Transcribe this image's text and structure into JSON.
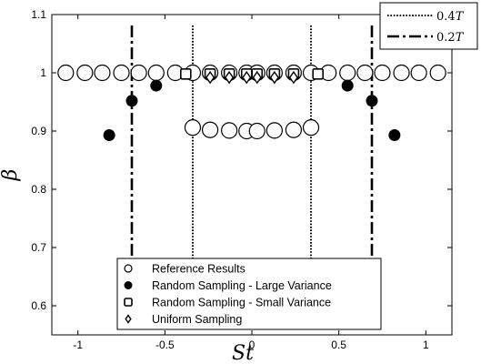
{
  "chart_data": {
    "type": "scatter",
    "xlabel": "St",
    "ylabel": "β",
    "xlim": [
      -1.15,
      1.15
    ],
    "ylim": [
      0.55,
      1.1
    ],
    "xticks": [
      "-1",
      "-0.5",
      "0",
      "0.5",
      "1"
    ],
    "xtick_values": [
      -1,
      -0.5,
      0,
      0.5,
      1
    ],
    "yticks": [
      "0.6",
      "0.7",
      "0.8",
      "0.9",
      "1",
      "1.1"
    ],
    "ytick_values": [
      0.6,
      0.7,
      0.8,
      0.9,
      1.0,
      1.1
    ],
    "series": [
      {
        "name": "Reference Results",
        "marker": "open-circle",
        "points": [
          [
            -1.07,
            1.0
          ],
          [
            -0.96,
            1.0
          ],
          [
            -0.86,
            1.0
          ],
          [
            -0.75,
            1.0
          ],
          [
            -0.65,
            1.0
          ],
          [
            -0.55,
            1.0
          ],
          [
            -0.44,
            1.0
          ],
          [
            -0.34,
            1.0
          ],
          [
            -0.24,
            1.0
          ],
          [
            -0.13,
            1.0
          ],
          [
            -0.03,
            1.0
          ],
          [
            0.03,
            1.0
          ],
          [
            0.13,
            1.0
          ],
          [
            0.24,
            1.0
          ],
          [
            0.34,
            1.0
          ],
          [
            0.44,
            1.0
          ],
          [
            0.55,
            1.0
          ],
          [
            0.65,
            1.0
          ],
          [
            0.75,
            1.0
          ],
          [
            0.86,
            1.0
          ],
          [
            0.96,
            1.0
          ],
          [
            1.07,
            1.0
          ],
          [
            -0.34,
            0.906
          ],
          [
            -0.24,
            0.902
          ],
          [
            -0.13,
            0.901
          ],
          [
            -0.03,
            0.9
          ],
          [
            0.03,
            0.9
          ],
          [
            0.13,
            0.901
          ],
          [
            0.24,
            0.902
          ],
          [
            0.34,
            0.906
          ]
        ]
      },
      {
        "name": "Random Sampling - Large Variance",
        "marker": "filled-circle",
        "points": [
          [
            -0.82,
            0.893
          ],
          [
            -0.69,
            0.952
          ],
          [
            -0.55,
            0.978
          ],
          [
            0.55,
            0.978
          ],
          [
            0.69,
            0.952
          ],
          [
            0.82,
            0.893
          ]
        ]
      },
      {
        "name": "Random Sampling - Small Variance",
        "marker": "open-square",
        "points": [
          [
            -0.38,
            0.998
          ],
          [
            -0.24,
            0.998
          ],
          [
            -0.13,
            0.998
          ],
          [
            -0.03,
            0.998
          ],
          [
            0.03,
            0.998
          ],
          [
            0.13,
            0.998
          ],
          [
            0.24,
            0.998
          ],
          [
            0.38,
            0.998
          ]
        ]
      },
      {
        "name": "Uniform Sampling",
        "marker": "open-diamond",
        "points": [
          [
            -0.24,
            0.992
          ],
          [
            -0.13,
            0.992
          ],
          [
            -0.03,
            0.992
          ],
          [
            0.03,
            0.992
          ],
          [
            0.13,
            0.992
          ],
          [
            0.24,
            0.992
          ]
        ]
      }
    ],
    "vertical_lines": [
      {
        "label": "0.4T",
        "style": "dotted",
        "x": [
          -0.34,
          0.34
        ]
      },
      {
        "label": "0.2T",
        "style": "dash-dot",
        "x": [
          -0.69,
          0.69
        ]
      }
    ],
    "line_legend": [
      {
        "text": "0.4",
        "italic": "T"
      },
      {
        "text": "0.2",
        "italic": "T"
      }
    ],
    "marker_legend": [
      "Reference Results",
      "Random Sampling - Large Variance",
      "Random Sampling - Small Variance",
      "Uniform Sampling"
    ],
    "grid": false,
    "legend_placement": [
      "top-right",
      "bottom-center"
    ]
  }
}
